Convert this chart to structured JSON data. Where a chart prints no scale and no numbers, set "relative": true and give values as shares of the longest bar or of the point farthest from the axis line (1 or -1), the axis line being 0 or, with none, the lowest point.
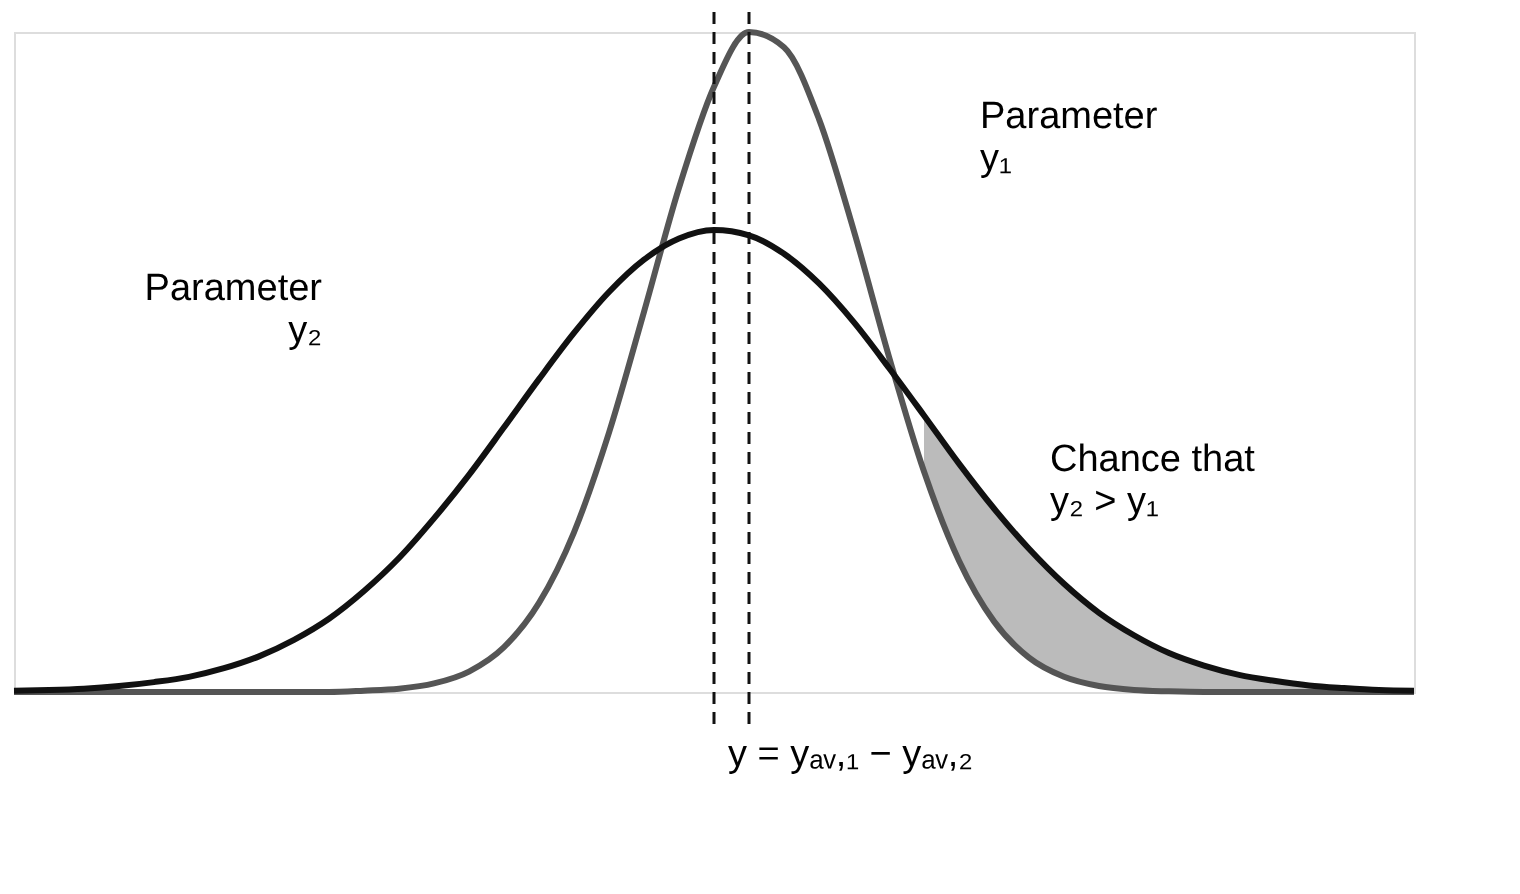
{
  "chart_data": {
    "type": "line",
    "relative": true,
    "categories": [
      null,
      null,
      null,
      null,
      null,
      null,
      null,
      null,
      null,
      null,
      null,
      null,
      null,
      null,
      null,
      null,
      null,
      null,
      null,
      null,
      null,
      null,
      null,
      null,
      null,
      null,
      null,
      null,
      null,
      null,
      null,
      null,
      null,
      null,
      null,
      null,
      null,
      null,
      null,
      null,
      null
    ],
    "series": [
      {
        "color": "#555555",
        "values": [
          0,
          0,
          0,
          0,
          0,
          0,
          0,
          0,
          0,
          0,
          0.002,
          0.005,
          0.013,
          0.031,
          0.068,
          0.135,
          0.242,
          0.393,
          0.576,
          0.764,
          0.917,
          1,
          0.977,
          0.868,
          0.698,
          0.508,
          0.334,
          0.199,
          0.107,
          0.052,
          0.023,
          0.009,
          0.003,
          0.001,
          0,
          0,
          0,
          0,
          0,
          0,
          0
        ]
      },
      {
        "color": "#111111",
        "values": [
          0.002,
          0.003,
          0.005,
          0.009,
          0.015,
          0.023,
          0.036,
          0.054,
          0.079,
          0.111,
          0.153,
          0.203,
          0.263,
          0.329,
          0.401,
          0.474,
          0.544,
          0.606,
          0.655,
          0.687,
          0.7,
          0.692,
          0.664,
          0.619,
          0.56,
          0.491,
          0.419,
          0.346,
          0.278,
          0.217,
          0.164,
          0.12,
          0.086,
          0.059,
          0.04,
          0.026,
          0.017,
          0.01,
          0.006,
          0.003,
          0.002
        ],
        "lower": [
          null,
          null,
          null,
          null,
          null,
          null,
          null,
          null,
          null,
          null,
          null,
          null,
          null,
          null,
          null,
          null,
          null,
          null,
          null,
          null,
          null,
          null,
          null,
          null,
          null,
          null,
          0.334,
          0.199,
          0.107,
          0.052,
          0.023,
          0.009,
          0.003,
          0.001,
          0,
          0,
          0,
          0,
          0,
          0,
          0
        ],
        "upper": [
          null,
          null,
          null,
          null,
          null,
          null,
          null,
          null,
          null,
          null,
          null,
          null,
          null,
          null,
          null,
          null,
          null,
          null,
          null,
          null,
          null,
          null,
          null,
          null,
          null,
          null,
          0.419,
          0.346,
          0.278,
          0.217,
          0.164,
          0.12,
          0.086,
          0.059,
          0.04,
          0.026,
          0.017,
          0.01,
          0.006,
          0.003,
          0.002
        ]
      }
    ],
    "annotations": [
      "Parameter\ny₁",
      "Parameter\ny₂",
      "Chance that\ny₂ > y₁",
      "y = yₐᵥ,₁ − yₐᵥ,₂"
    ]
  }
}
